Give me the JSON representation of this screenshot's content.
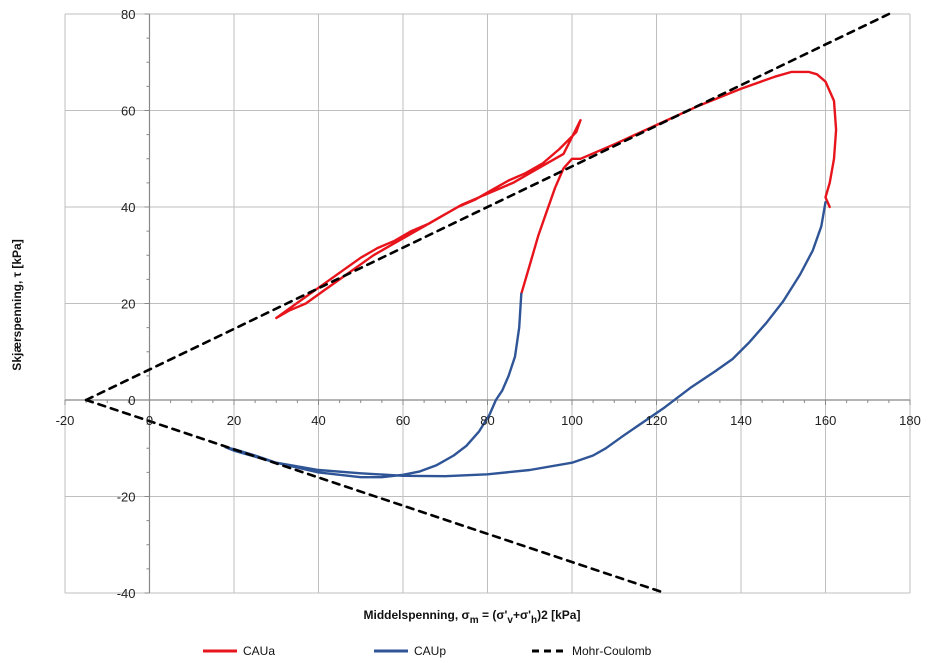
{
  "chart_data": {
    "type": "line",
    "title": "",
    "xlabel": "Middelspenning, σm = (σ'v+σ'h)2 [kPa]",
    "ylabel": "Skjærspenning, τ [kPa]",
    "xlim": [
      -20,
      180
    ],
    "ylim": [
      -40,
      80
    ],
    "x_ticks": [
      -20,
      0,
      20,
      40,
      60,
      80,
      100,
      120,
      140,
      160,
      180
    ],
    "y_ticks": [
      -40,
      -20,
      0,
      20,
      40,
      60,
      80
    ],
    "grid": true,
    "legend_position": "bottom",
    "series": [
      {
        "name": "CAUa",
        "color": "#e8141c",
        "dash": "solid",
        "x": [
          30,
          34,
          38,
          42,
          46,
          50,
          54,
          58,
          62,
          66,
          70,
          74,
          78,
          82,
          86,
          90,
          94,
          98,
          102,
          101,
          97,
          93,
          89,
          85,
          81,
          77,
          73,
          69,
          65,
          61,
          57,
          53,
          49,
          45,
          41,
          37,
          33,
          30
        ],
        "y": [
          17,
          19.5,
          22,
          24.5,
          27,
          29.5,
          31.5,
          33,
          35,
          36.5,
          38.5,
          40.5,
          42,
          43.5,
          45,
          47,
          49,
          51,
          58,
          55.5,
          52,
          49,
          47,
          45.5,
          43.5,
          41.5,
          40,
          38,
          36,
          34,
          32,
          30,
          27.5,
          25,
          22.5,
          20,
          18.5,
          17
        ]
      },
      {
        "name": "CAUa",
        "color": "#e8141c",
        "dash": "solid",
        "x": [
          88,
          90,
          92,
          94,
          96,
          98,
          100,
          102,
          110,
          120,
          130,
          140,
          148,
          152,
          156,
          158,
          160,
          162,
          162.5,
          162,
          161,
          160,
          161
        ],
        "y": [
          22,
          28,
          34,
          39,
          44,
          48,
          50,
          50,
          53,
          57,
          61,
          64.5,
          67,
          68,
          68,
          67.5,
          66,
          62,
          56,
          50,
          45,
          42,
          40
        ]
      },
      {
        "name": "CAUp",
        "color": "#2f5597",
        "dash": "solid",
        "x": [
          88,
          87.5,
          86.5,
          85,
          83.5,
          82,
          80.5,
          78,
          75,
          72,
          68,
          64,
          60,
          55,
          50,
          45,
          40,
          35,
          30,
          25,
          20,
          18,
          20,
          30,
          40,
          50,
          60,
          70,
          80,
          90,
          100,
          105,
          108,
          112,
          117,
          122,
          128,
          134,
          138,
          142,
          146,
          150,
          154,
          157,
          159,
          160
        ],
        "y": [
          22,
          15,
          9,
          5,
          2,
          0,
          -3,
          -6.5,
          -9.5,
          -11.5,
          -13.5,
          -14.8,
          -15.5,
          -16,
          -16,
          -15.5,
          -15,
          -14,
          -13,
          -11.5,
          -10.2,
          -9.8,
          -10.5,
          -13,
          -14.5,
          -15.2,
          -15.7,
          -15.8,
          -15.4,
          -14.5,
          -13,
          -11.5,
          -10,
          -7.5,
          -4.5,
          -1.5,
          2.5,
          6,
          8.5,
          12,
          16,
          20.5,
          26,
          31,
          36,
          41
        ]
      },
      {
        "name": "Mohr-Coulomb",
        "color": "#000000",
        "dash": "dashed",
        "x": [
          -15,
          175
        ],
        "y": [
          0,
          80
        ]
      },
      {
        "name": "Mohr-Coulomb",
        "color": "#000000",
        "dash": "dashed",
        "x": [
          -15,
          122
        ],
        "y": [
          0,
          -40
        ]
      }
    ],
    "legend": [
      {
        "label": "CAUa",
        "color": "#e8141c",
        "dash": "solid"
      },
      {
        "label": "CAUp",
        "color": "#2f5597",
        "dash": "solid"
      },
      {
        "label": "Mohr-Coulomb",
        "color": "#000000",
        "dash": "dashed"
      }
    ]
  }
}
